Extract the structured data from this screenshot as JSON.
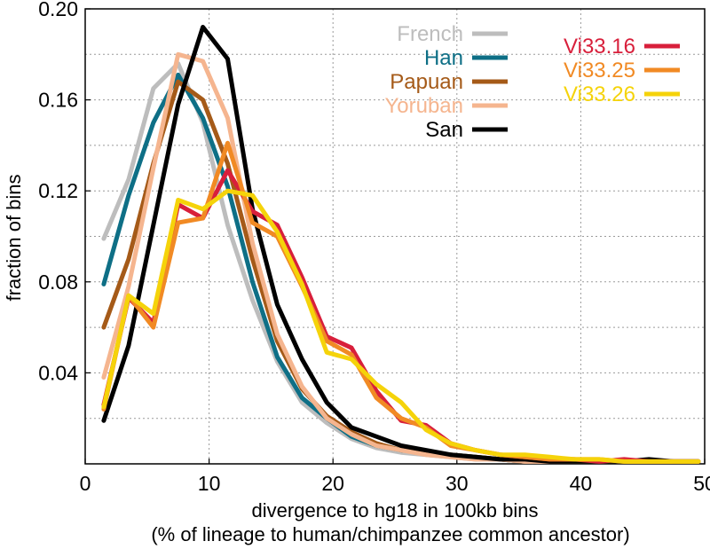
{
  "chart_data": {
    "type": "line",
    "xlabel": "divergence to hg18 in 100kb bins",
    "xlabel2": "(% of lineage to human/chimpanzee common ancestor)",
    "ylabel": "fraction of bins",
    "xlim": [
      0,
      50
    ],
    "ylim": [
      0,
      0.2
    ],
    "xticks": [
      0,
      10,
      20,
      30,
      40,
      50
    ],
    "yticks": [
      0.04,
      0.08,
      0.12,
      0.16,
      0.2
    ],
    "ytick_labels": [
      "0.04",
      "0.08",
      "0.12",
      "0.16",
      "0.20"
    ],
    "grid": true,
    "legend_position": "top-right",
    "x": [
      1.5,
      3.5,
      5.5,
      7.5,
      9.5,
      11.5,
      13.5,
      15.5,
      17.5,
      19.5,
      21.5,
      23.5,
      25.5,
      27.5,
      29.5,
      31.5,
      33.5,
      35.5,
      37.5,
      39.5,
      41.5,
      43.5,
      45.5,
      47.5,
      49.5
    ],
    "series": [
      {
        "name": "French",
        "color": "#bdbdbd",
        "values": [
          0.099,
          0.125,
          0.165,
          0.176,
          0.15,
          0.105,
          0.072,
          0.045,
          0.027,
          0.018,
          0.011,
          0.007,
          0.005,
          0.004,
          0.003,
          0.002,
          0.002,
          0.001,
          0.001,
          0.001,
          0.001,
          0.001,
          0.001,
          0.001,
          0.001
        ]
      },
      {
        "name": "Han",
        "color": "#0e6f86",
        "values": [
          0.079,
          0.118,
          0.15,
          0.171,
          0.152,
          0.122,
          0.08,
          0.047,
          0.029,
          0.02,
          0.012,
          0.008,
          0.006,
          0.005,
          0.004,
          0.003,
          0.002,
          0.001,
          0.001,
          0.001,
          0.001,
          0.001,
          0.001,
          0.001,
          0.001
        ]
      },
      {
        "name": "Papuan",
        "color": "#a55a18",
        "values": [
          0.06,
          0.09,
          0.132,
          0.168,
          0.16,
          0.132,
          0.09,
          0.054,
          0.033,
          0.021,
          0.014,
          0.009,
          0.006,
          0.005,
          0.004,
          0.003,
          0.002,
          0.001,
          0.001,
          0.001,
          0.001,
          0.001,
          0.001,
          0.001,
          0.001
        ]
      },
      {
        "name": "Yoruban",
        "color": "#f5b58f",
        "values": [
          0.038,
          0.078,
          0.13,
          0.18,
          0.177,
          0.152,
          0.097,
          0.057,
          0.034,
          0.02,
          0.013,
          0.008,
          0.006,
          0.004,
          0.003,
          0.002,
          0.002,
          0.001,
          0.001,
          0.001,
          0.001,
          0.001,
          0.001,
          0.001,
          0.001
        ]
      },
      {
        "name": "San",
        "color": "#000000",
        "values": [
          0.019,
          0.052,
          0.105,
          0.158,
          0.192,
          0.178,
          0.112,
          0.07,
          0.046,
          0.027,
          0.016,
          0.012,
          0.008,
          0.006,
          0.004,
          0.003,
          0.002,
          0.002,
          0.001,
          0.001,
          0.001,
          0.001,
          0.002,
          0.001,
          0.001
        ]
      },
      {
        "name": "Vi33.16",
        "color": "#d81f3b",
        "values": [
          0.026,
          0.073,
          0.062,
          0.114,
          0.108,
          0.129,
          0.111,
          0.105,
          0.082,
          0.056,
          0.051,
          0.032,
          0.019,
          0.017,
          0.009,
          0.006,
          0.004,
          0.003,
          0.002,
          0.002,
          0.001,
          0.002,
          0.001,
          0.001,
          0.001
        ]
      },
      {
        "name": "Vi33.25",
        "color": "#f18a24",
        "values": [
          0.024,
          0.074,
          0.06,
          0.106,
          0.108,
          0.141,
          0.106,
          0.1,
          0.078,
          0.054,
          0.048,
          0.029,
          0.02,
          0.016,
          0.008,
          0.006,
          0.004,
          0.003,
          0.002,
          0.002,
          0.002,
          0.001,
          0.001,
          0.001,
          0.001
        ]
      },
      {
        "name": "Vi33.26",
        "color": "#f5d30a",
        "values": [
          0.025,
          0.074,
          0.066,
          0.116,
          0.112,
          0.12,
          0.118,
          0.102,
          0.079,
          0.049,
          0.046,
          0.035,
          0.027,
          0.015,
          0.009,
          0.006,
          0.004,
          0.004,
          0.003,
          0.002,
          0.002,
          0.001,
          0.001,
          0.001,
          0.001
        ]
      }
    ]
  }
}
